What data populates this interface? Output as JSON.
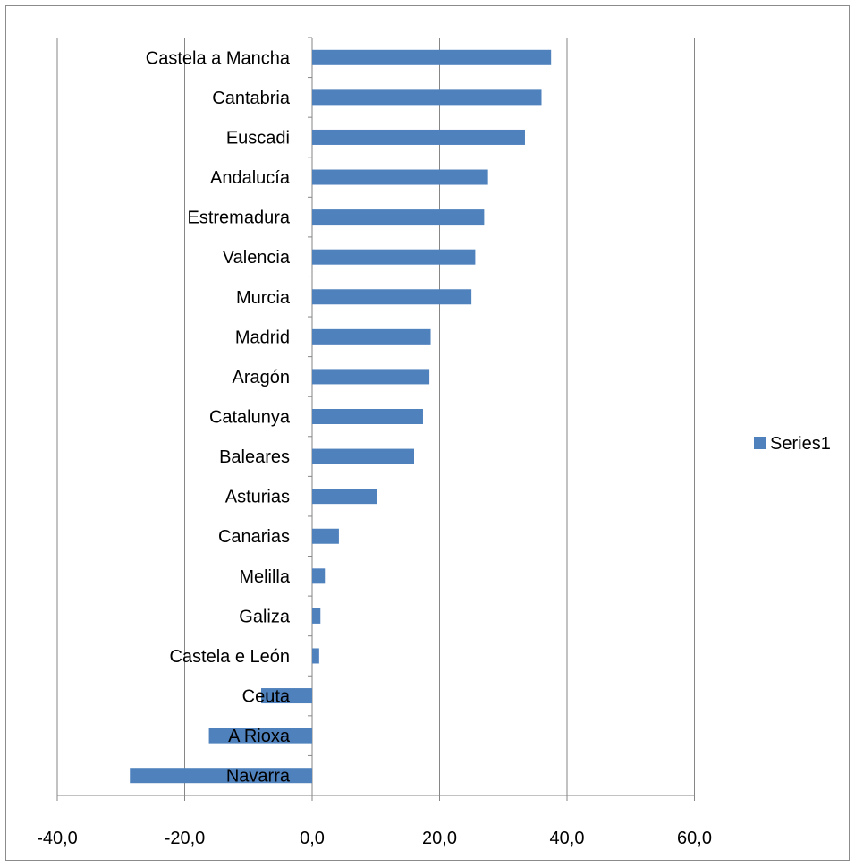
{
  "chart_data": {
    "type": "bar",
    "orientation": "horizontal",
    "title": "",
    "xlabel": "",
    "ylabel": "",
    "categories": [
      "Castela a Mancha",
      "Cantabria",
      "Euscadi",
      "Andalucía",
      "Estremadura",
      "Valencia",
      "Murcia",
      "Madrid",
      "Aragón",
      "Catalunya",
      "Baleares",
      "Asturias",
      "Canarias",
      "Melilla",
      "Galiza",
      "Castela e León",
      "Ceuta",
      "A Rioxa",
      "Navarra"
    ],
    "series": [
      {
        "name": "Series1",
        "values": [
          37.5,
          36.0,
          33.4,
          27.6,
          27.0,
          25.6,
          25.0,
          18.6,
          18.4,
          17.4,
          16.0,
          10.2,
          4.2,
          2.0,
          1.3,
          1.1,
          -8.0,
          -16.2,
          -28.6
        ]
      }
    ],
    "xlim": [
      -40,
      60
    ],
    "xticks": [
      "-40,0",
      "-20,0",
      "0,0",
      "20,0",
      "40,0",
      "60,0"
    ],
    "grid": "vertical",
    "legend": "right",
    "colors": {
      "bar": "#4f81bd",
      "grid": "#868686",
      "axis": "#868686"
    }
  }
}
